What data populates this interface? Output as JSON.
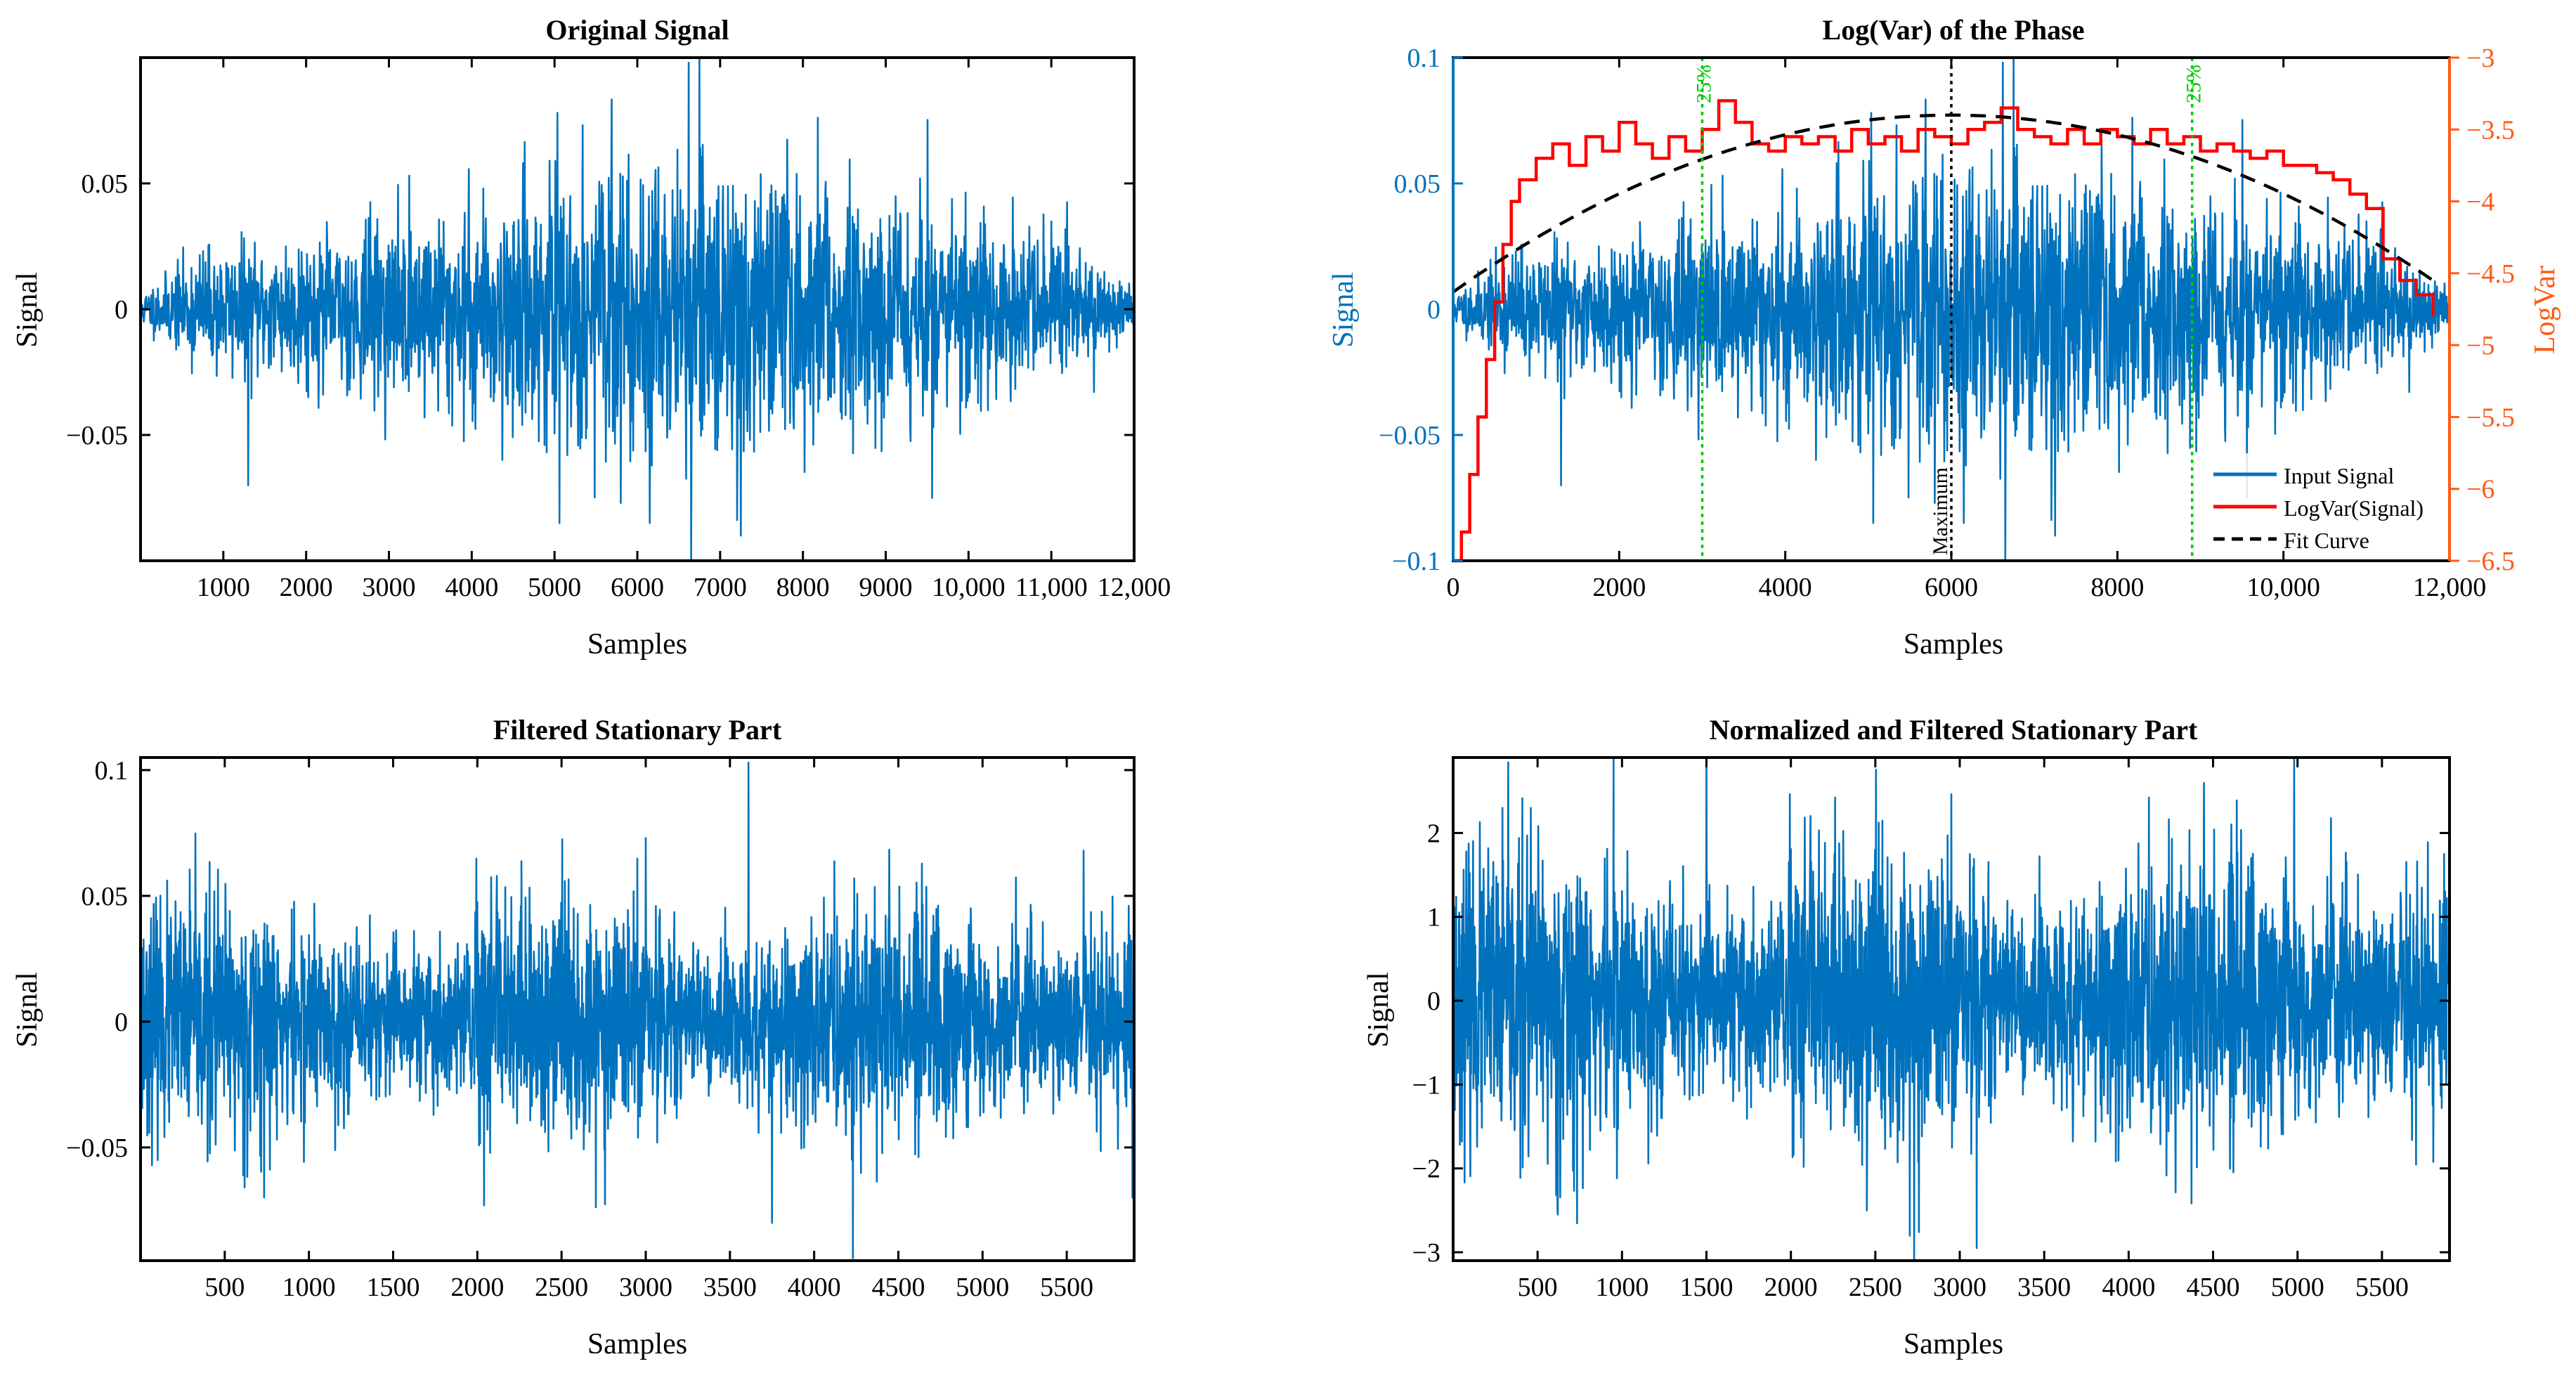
{
  "figure": {
    "background": "#ffffff",
    "signal_color": "#0072BD",
    "logvar_color": "#FF0000",
    "fit_color": "#000000",
    "marker_color": "#00CC00",
    "right_axis_color": "#FF5A14"
  },
  "chart_data": [
    {
      "id": "original",
      "type": "line",
      "title": "Original Signal",
      "xlabel": "Samples",
      "ylabel": "Signal",
      "xlim": [
        0,
        12000
      ],
      "ylim": [
        -0.1,
        0.1
      ],
      "xticks": [
        1000,
        2000,
        3000,
        4000,
        5000,
        6000,
        7000,
        8000,
        9000,
        10000,
        11000,
        12000
      ],
      "xtick_labels": [
        "1000",
        "2000",
        "3000",
        "4000",
        "5000",
        "6000",
        "7000",
        "8000",
        "9000",
        "10,000",
        "11,000",
        "12,000"
      ],
      "yticks": [
        -0.05,
        0,
        0.05
      ],
      "ytick_labels": [
        "−0.05",
        "0",
        "0.05"
      ],
      "series": [
        {
          "name": "Signal",
          "color": "#0072BD",
          "n": 12000,
          "seed": 11,
          "envelope": "bell",
          "amp": 0.028,
          "peak_position": 0.55,
          "spikes": [
            [
              6620,
              0.098
            ],
            [
              6650,
              -0.1
            ],
            [
              7250,
              -0.09
            ],
            [
              5060,
              -0.085
            ],
            [
              9560,
              -0.075
            ],
            [
              1300,
              -0.07
            ],
            [
              6150,
              -0.085
            ]
          ]
        }
      ]
    },
    {
      "id": "logvar",
      "type": "line",
      "title": "Log(Var) of the Phase",
      "xlabel": "Samples",
      "ylabel": "Signal",
      "ylabel_right": "LogVar",
      "xlim": [
        0,
        12000
      ],
      "ylim": [
        -0.1,
        0.1
      ],
      "ylim_right": [
        -6.5,
        -3
      ],
      "xticks": [
        0,
        2000,
        4000,
        6000,
        8000,
        10000,
        12000
      ],
      "xtick_labels": [
        "0",
        "2000",
        "4000",
        "6000",
        "8000",
        "10,000",
        "12,000"
      ],
      "yticks": [
        -0.1,
        -0.05,
        0,
        0.05,
        0.1
      ],
      "ytick_labels": [
        "−0.1",
        "−0.05",
        "0",
        "0.05",
        "0.1"
      ],
      "yticks_right": [
        -6.5,
        -6,
        -5.5,
        -5,
        -4.5,
        -4,
        -3.5,
        -3
      ],
      "ytick_labels_right": [
        "−6.5",
        "−6",
        "−5.5",
        "−5",
        "−4.5",
        "−4",
        "−3.5",
        "−3"
      ],
      "series": [
        {
          "name": "Input Signal",
          "color": "#0072BD",
          "n": 12000,
          "seed": 11,
          "envelope": "bell",
          "amp": 0.028,
          "peak_position": 0.55,
          "spikes": [
            [
              6620,
              0.098
            ],
            [
              6650,
              -0.1
            ],
            [
              7250,
              -0.09
            ],
            [
              5060,
              -0.085
            ],
            [
              9560,
              -0.075
            ],
            [
              1300,
              -0.07
            ],
            [
              6150,
              -0.085
            ]
          ]
        },
        {
          "name": "LogVar(Signal)",
          "color": "#FF0000",
          "axis": "right",
          "points": [
            [
              0,
              -6.5
            ],
            [
              100,
              -6.3
            ],
            [
              200,
              -5.9
            ],
            [
              300,
              -5.5
            ],
            [
              400,
              -5.1
            ],
            [
              500,
              -4.7
            ],
            [
              600,
              -4.3
            ],
            [
              700,
              -4.0
            ],
            [
              800,
              -3.85
            ],
            [
              1000,
              -3.7
            ],
            [
              1200,
              -3.6
            ],
            [
              1400,
              -3.75
            ],
            [
              1600,
              -3.55
            ],
            [
              1800,
              -3.65
            ],
            [
              2000,
              -3.45
            ],
            [
              2200,
              -3.6
            ],
            [
              2400,
              -3.7
            ],
            [
              2600,
              -3.55
            ],
            [
              2800,
              -3.65
            ],
            [
              3000,
              -3.5
            ],
            [
              3200,
              -3.3
            ],
            [
              3400,
              -3.45
            ],
            [
              3600,
              -3.6
            ],
            [
              3800,
              -3.65
            ],
            [
              4000,
              -3.55
            ],
            [
              4200,
              -3.6
            ],
            [
              4400,
              -3.55
            ],
            [
              4600,
              -3.65
            ],
            [
              4800,
              -3.5
            ],
            [
              5000,
              -3.6
            ],
            [
              5200,
              -3.55
            ],
            [
              5400,
              -3.65
            ],
            [
              5600,
              -3.5
            ],
            [
              5800,
              -3.55
            ],
            [
              6000,
              -3.6
            ],
            [
              6200,
              -3.5
            ],
            [
              6400,
              -3.45
            ],
            [
              6600,
              -3.35
            ],
            [
              6800,
              -3.5
            ],
            [
              7000,
              -3.55
            ],
            [
              7200,
              -3.6
            ],
            [
              7400,
              -3.5
            ],
            [
              7600,
              -3.6
            ],
            [
              7800,
              -3.5
            ],
            [
              8000,
              -3.55
            ],
            [
              8200,
              -3.6
            ],
            [
              8400,
              -3.5
            ],
            [
              8600,
              -3.6
            ],
            [
              8800,
              -3.55
            ],
            [
              9000,
              -3.65
            ],
            [
              9200,
              -3.6
            ],
            [
              9400,
              -3.65
            ],
            [
              9600,
              -3.7
            ],
            [
              9800,
              -3.65
            ],
            [
              10000,
              -3.75
            ],
            [
              10200,
              -3.75
            ],
            [
              10400,
              -3.8
            ],
            [
              10600,
              -3.85
            ],
            [
              10800,
              -3.95
            ],
            [
              11000,
              -4.05
            ],
            [
              11200,
              -4.4
            ],
            [
              11400,
              -4.55
            ],
            [
              11600,
              -4.65
            ],
            [
              11800,
              -4.8
            ]
          ]
        },
        {
          "name": "Fit Curve",
          "color": "#000000",
          "axis": "right",
          "style": "dashed",
          "quadratic": {
            "vertex_x": 6000,
            "vertex_y": -3.4,
            "end_y": -4.55,
            "x_from": 0,
            "x_to": 11800
          }
        }
      ],
      "vlines": [
        {
          "x": 3000,
          "label": "25%",
          "color": "#00CC00",
          "style": "dotted"
        },
        {
          "x": 8900,
          "label": "25%",
          "color": "#00CC00",
          "style": "dotted"
        },
        {
          "x": 6000,
          "label": "Maximum",
          "color": "#000000",
          "style": "dotted"
        }
      ],
      "legend": {
        "position": "bottom-right",
        "entries": [
          "Input Signal",
          "LogVar(Signal)",
          "Fit Curve"
        ]
      }
    },
    {
      "id": "filtered",
      "type": "line",
      "title": "Filtered Stationary Part",
      "xlabel": "Samples",
      "ylabel": "Signal",
      "xlim": [
        0,
        5900
      ],
      "ylim": [
        -0.095,
        0.105
      ],
      "xticks": [
        500,
        1000,
        1500,
        2000,
        2500,
        3000,
        3500,
        4000,
        4500,
        5000,
        5500
      ],
      "xtick_labels": [
        "500",
        "1000",
        "1500",
        "2000",
        "2500",
        "3000",
        "3500",
        "4000",
        "4500",
        "5000",
        "5500"
      ],
      "yticks": [
        -0.05,
        0,
        0.05,
        0.1
      ],
      "ytick_labels": [
        "−0.05",
        "0",
        "0.05",
        "0.1"
      ],
      "series": [
        {
          "name": "Signal",
          "color": "#0072BD",
          "n": 5900,
          "seed": 23,
          "envelope": "flat",
          "amp": 0.025,
          "spikes": [
            [
              3610,
              0.103
            ],
            [
              4230,
              -0.094
            ],
            [
              3750,
              -0.08
            ],
            [
              2040,
              -0.073
            ],
            [
              3000,
              0.073
            ],
            [
              5600,
              0.068
            ],
            [
              5890,
              -0.07
            ]
          ]
        }
      ]
    },
    {
      "id": "normalized",
      "type": "line",
      "title": "Normalized and Filtered Stationary Part",
      "xlabel": "Samples",
      "ylabel": "Signal",
      "xlim": [
        0,
        5900
      ],
      "ylim": [
        -3.1,
        2.9
      ],
      "xticks": [
        500,
        1000,
        1500,
        2000,
        2500,
        3000,
        3500,
        4000,
        4500,
        5000,
        5500
      ],
      "xtick_labels": [
        "500",
        "1000",
        "1500",
        "2000",
        "2500",
        "3000",
        "3500",
        "4000",
        "4500",
        "5000",
        "5500"
      ],
      "yticks": [
        -3,
        -2,
        -1,
        0,
        1,
        2
      ],
      "ytick_labels": [
        "−3",
        "−2",
        "−1",
        "0",
        "1",
        "2"
      ],
      "series": [
        {
          "name": "Signal",
          "color": "#0072BD",
          "n": 5900,
          "seed": 23,
          "envelope": "flat",
          "amp": 0.95,
          "spikes": [
            [
              1500,
              2.9
            ],
            [
              4980,
              2.9
            ],
            [
              950,
              2.9
            ],
            [
              2730,
              -3.1
            ],
            [
              3100,
              -2.95
            ],
            [
              2450,
              -2.5
            ],
            [
              620,
              -2.55
            ]
          ]
        }
      ]
    }
  ]
}
